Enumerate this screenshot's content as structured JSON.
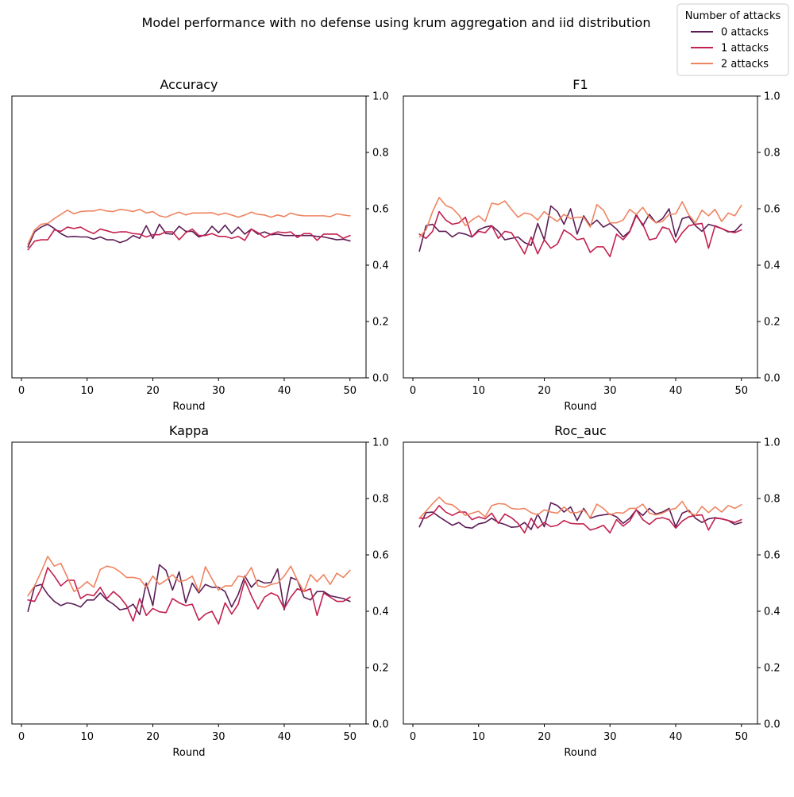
{
  "figure": {
    "title": "Model performance with no defense using krum aggregation and iid distribution",
    "legend_title": "Number of attacks",
    "legend_placement": "top-right (figure)"
  },
  "colors": {
    "s0": "#5c1d56",
    "s1": "#c3204f",
    "s2": "#ef8460"
  },
  "chart_data": [
    {
      "type": "line",
      "title": "Accuracy",
      "xlabel": "Round",
      "ylabel": "",
      "xlim": [
        -1.45,
        52.45
      ],
      "ylim": [
        0,
        1
      ],
      "xticks": [
        0,
        10,
        20,
        30,
        40,
        50
      ],
      "yticks": [
        0.0,
        0.2,
        0.4,
        0.6,
        0.8,
        1.0
      ],
      "ytick_labels": [
        "0.0",
        "0.2",
        "0.4",
        "0.6",
        "0.8",
        "1.0"
      ],
      "y_axis_side": "right",
      "grid": false,
      "x": [
        1,
        2,
        3,
        4,
        5,
        6,
        7,
        8,
        9,
        10,
        11,
        12,
        13,
        14,
        15,
        16,
        17,
        18,
        19,
        20,
        21,
        22,
        23,
        24,
        25,
        26,
        27,
        28,
        29,
        30,
        31,
        32,
        33,
        34,
        35,
        36,
        37,
        38,
        39,
        40,
        41,
        42,
        43,
        44,
        45,
        46,
        47,
        48,
        49,
        50
      ],
      "series": [
        {
          "name": "0 attacks",
          "color_key": "s0",
          "values": [
            0.465,
            0.518,
            0.535,
            0.545,
            0.53,
            0.512,
            0.5,
            0.502,
            0.5,
            0.5,
            0.492,
            0.5,
            0.49,
            0.49,
            0.48,
            0.488,
            0.505,
            0.495,
            0.54,
            0.495,
            0.545,
            0.512,
            0.51,
            0.538,
            0.52,
            0.52,
            0.5,
            0.508,
            0.538,
            0.515,
            0.542,
            0.512,
            0.535,
            0.51,
            0.528,
            0.51,
            0.518,
            0.508,
            0.51,
            0.505,
            0.505,
            0.505,
            0.505,
            0.505,
            0.502,
            0.5,
            0.495,
            0.49,
            0.492,
            0.486
          ]
        },
        {
          "name": "1 attacks",
          "color_key": "s1",
          "values": [
            0.455,
            0.485,
            0.49,
            0.49,
            0.525,
            0.52,
            0.535,
            0.53,
            0.535,
            0.522,
            0.512,
            0.528,
            0.522,
            0.515,
            0.518,
            0.518,
            0.512,
            0.51,
            0.5,
            0.508,
            0.508,
            0.518,
            0.518,
            0.49,
            0.515,
            0.528,
            0.505,
            0.505,
            0.512,
            0.502,
            0.502,
            0.495,
            0.502,
            0.488,
            0.528,
            0.515,
            0.498,
            0.51,
            0.518,
            0.515,
            0.518,
            0.498,
            0.512,
            0.512,
            0.488,
            0.51,
            0.51,
            0.51,
            0.495,
            0.505
          ]
        },
        {
          "name": "2 attacks",
          "color_key": "s2",
          "values": [
            0.475,
            0.525,
            0.545,
            0.548,
            0.565,
            0.58,
            0.595,
            0.582,
            0.59,
            0.592,
            0.592,
            0.598,
            0.592,
            0.59,
            0.598,
            0.595,
            0.59,
            0.598,
            0.585,
            0.59,
            0.575,
            0.57,
            0.58,
            0.588,
            0.578,
            0.585,
            0.585,
            0.585,
            0.586,
            0.578,
            0.585,
            0.578,
            0.57,
            0.578,
            0.588,
            0.58,
            0.578,
            0.57,
            0.578,
            0.572,
            0.585,
            0.578,
            0.575,
            0.575,
            0.575,
            0.575,
            0.572,
            0.582,
            0.578,
            0.575
          ]
        }
      ]
    },
    {
      "type": "line",
      "title": "F1",
      "xlabel": "Round",
      "ylabel": "",
      "xlim": [
        -1.45,
        52.45
      ],
      "ylim": [
        0,
        1
      ],
      "xticks": [
        0,
        10,
        20,
        30,
        40,
        50
      ],
      "yticks": [
        0.0,
        0.2,
        0.4,
        0.6,
        0.8,
        1.0
      ],
      "ytick_labels": [
        "0.0",
        "0.2",
        "0.4",
        "0.6",
        "0.8",
        "1.0"
      ],
      "y_axis_side": "right",
      "grid": false,
      "x": [
        1,
        2,
        3,
        4,
        5,
        6,
        7,
        8,
        9,
        10,
        11,
        12,
        13,
        14,
        15,
        16,
        17,
        18,
        19,
        20,
        21,
        22,
        23,
        24,
        25,
        26,
        27,
        28,
        29,
        30,
        31,
        32,
        33,
        34,
        35,
        36,
        37,
        38,
        39,
        40,
        41,
        42,
        43,
        44,
        45,
        46,
        47,
        48,
        49,
        50
      ],
      "series": [
        {
          "name": "0 attacks",
          "color_key": "s0",
          "values": [
            0.45,
            0.54,
            0.545,
            0.52,
            0.52,
            0.5,
            0.515,
            0.51,
            0.5,
            0.525,
            0.535,
            0.54,
            0.52,
            0.49,
            0.495,
            0.5,
            0.48,
            0.47,
            0.548,
            0.49,
            0.61,
            0.59,
            0.545,
            0.6,
            0.51,
            0.575,
            0.54,
            0.56,
            0.535,
            0.548,
            0.528,
            0.5,
            0.52,
            0.58,
            0.54,
            0.58,
            0.55,
            0.565,
            0.6,
            0.5,
            0.565,
            0.572,
            0.54,
            0.52,
            0.545,
            0.538,
            0.53,
            0.518,
            0.52,
            0.545
          ]
        },
        {
          "name": "1 attacks",
          "color_key": "s1",
          "values": [
            0.51,
            0.495,
            0.52,
            0.59,
            0.56,
            0.545,
            0.55,
            0.57,
            0.5,
            0.52,
            0.515,
            0.54,
            0.495,
            0.52,
            0.515,
            0.48,
            0.44,
            0.5,
            0.44,
            0.49,
            0.46,
            0.475,
            0.525,
            0.51,
            0.49,
            0.495,
            0.445,
            0.465,
            0.465,
            0.43,
            0.51,
            0.49,
            0.518,
            0.575,
            0.545,
            0.49,
            0.495,
            0.535,
            0.528,
            0.48,
            0.515,
            0.54,
            0.545,
            0.548,
            0.46,
            0.54,
            0.53,
            0.52,
            0.515,
            0.525
          ]
        },
        {
          "name": "2 attacks",
          "color_key": "s2",
          "values": [
            0.5,
            0.525,
            0.59,
            0.64,
            0.612,
            0.602,
            0.578,
            0.54,
            0.56,
            0.575,
            0.555,
            0.62,
            0.615,
            0.628,
            0.598,
            0.57,
            0.585,
            0.58,
            0.56,
            0.59,
            0.57,
            0.555,
            0.58,
            0.565,
            0.57,
            0.57,
            0.535,
            0.615,
            0.595,
            0.55,
            0.55,
            0.56,
            0.598,
            0.58,
            0.605,
            0.57,
            0.55,
            0.555,
            0.58,
            0.582,
            0.625,
            0.578,
            0.55,
            0.595,
            0.575,
            0.598,
            0.555,
            0.585,
            0.575,
            0.612
          ]
        }
      ]
    },
    {
      "type": "line",
      "title": "Kappa",
      "xlabel": "Round",
      "ylabel": "",
      "xlim": [
        -1.45,
        52.45
      ],
      "ylim": [
        0,
        1
      ],
      "xticks": [
        0,
        10,
        20,
        30,
        40,
        50
      ],
      "yticks": [
        0.0,
        0.2,
        0.4,
        0.6,
        0.8,
        1.0
      ],
      "ytick_labels": [
        "0.0",
        "0.2",
        "0.4",
        "0.6",
        "0.8",
        "1.0"
      ],
      "y_axis_side": "right",
      "grid": false,
      "x": [
        1,
        2,
        3,
        4,
        5,
        6,
        7,
        8,
        9,
        10,
        11,
        12,
        13,
        14,
        15,
        16,
        17,
        18,
        19,
        20,
        21,
        22,
        23,
        24,
        25,
        26,
        27,
        28,
        29,
        30,
        31,
        32,
        33,
        34,
        35,
        36,
        37,
        38,
        39,
        40,
        41,
        42,
        43,
        44,
        45,
        46,
        47,
        48,
        49,
        50
      ],
      "series": [
        {
          "name": "0 attacks",
          "color_key": "s0",
          "values": [
            0.4,
            0.488,
            0.495,
            0.46,
            0.435,
            0.42,
            0.43,
            0.425,
            0.415,
            0.44,
            0.44,
            0.465,
            0.44,
            0.425,
            0.405,
            0.41,
            0.425,
            0.388,
            0.5,
            0.42,
            0.565,
            0.545,
            0.475,
            0.54,
            0.43,
            0.5,
            0.465,
            0.495,
            0.485,
            0.485,
            0.47,
            0.415,
            0.46,
            0.525,
            0.485,
            0.51,
            0.5,
            0.502,
            0.55,
            0.405,
            0.52,
            0.51,
            0.45,
            0.44,
            0.47,
            0.47,
            0.455,
            0.45,
            0.445,
            0.435
          ]
        },
        {
          "name": "1 attacks",
          "color_key": "s1",
          "values": [
            0.44,
            0.435,
            0.48,
            0.555,
            0.525,
            0.49,
            0.51,
            0.51,
            0.445,
            0.46,
            0.455,
            0.485,
            0.445,
            0.47,
            0.45,
            0.42,
            0.365,
            0.445,
            0.385,
            0.41,
            0.398,
            0.395,
            0.445,
            0.43,
            0.42,
            0.425,
            0.368,
            0.39,
            0.4,
            0.355,
            0.43,
            0.39,
            0.425,
            0.51,
            0.455,
            0.408,
            0.45,
            0.465,
            0.455,
            0.41,
            0.45,
            0.48,
            0.47,
            0.48,
            0.385,
            0.465,
            0.45,
            0.435,
            0.435,
            0.45
          ]
        },
        {
          "name": "2 attacks",
          "color_key": "s2",
          "values": [
            0.455,
            0.49,
            0.54,
            0.595,
            0.56,
            0.57,
            0.52,
            0.47,
            0.485,
            0.505,
            0.485,
            0.548,
            0.56,
            0.555,
            0.54,
            0.52,
            0.52,
            0.515,
            0.485,
            0.525,
            0.495,
            0.51,
            0.53,
            0.505,
            0.51,
            0.525,
            0.47,
            0.558,
            0.515,
            0.475,
            0.49,
            0.49,
            0.525,
            0.52,
            0.555,
            0.49,
            0.485,
            0.495,
            0.5,
            0.525,
            0.56,
            0.51,
            0.47,
            0.53,
            0.505,
            0.53,
            0.495,
            0.535,
            0.52,
            0.545
          ]
        }
      ]
    },
    {
      "type": "line",
      "title": "Roc_auc",
      "xlabel": "Round",
      "ylabel": "",
      "xlim": [
        -1.45,
        52.45
      ],
      "ylim": [
        0,
        1
      ],
      "xticks": [
        0,
        10,
        20,
        30,
        40,
        50
      ],
      "yticks": [
        0.0,
        0.2,
        0.4,
        0.6,
        0.8,
        1.0
      ],
      "ytick_labels": [
        "0.0",
        "0.2",
        "0.4",
        "0.6",
        "0.8",
        "1.0"
      ],
      "y_axis_side": "right",
      "grid": false,
      "x": [
        1,
        2,
        3,
        4,
        5,
        6,
        7,
        8,
        9,
        10,
        11,
        12,
        13,
        14,
        15,
        16,
        17,
        18,
        19,
        20,
        21,
        22,
        23,
        24,
        25,
        26,
        27,
        28,
        29,
        30,
        31,
        32,
        33,
        34,
        35,
        36,
        37,
        38,
        39,
        40,
        41,
        42,
        43,
        44,
        45,
        46,
        47,
        48,
        49,
        50
      ],
      "series": [
        {
          "name": "0 attacks",
          "color_key": "s0",
          "values": [
            0.7,
            0.75,
            0.752,
            0.735,
            0.72,
            0.705,
            0.715,
            0.698,
            0.695,
            0.71,
            0.715,
            0.73,
            0.715,
            0.708,
            0.698,
            0.7,
            0.715,
            0.69,
            0.745,
            0.7,
            0.785,
            0.775,
            0.752,
            0.77,
            0.722,
            0.765,
            0.73,
            0.738,
            0.742,
            0.745,
            0.735,
            0.712,
            0.73,
            0.76,
            0.74,
            0.765,
            0.745,
            0.752,
            0.765,
            0.7,
            0.748,
            0.758,
            0.73,
            0.715,
            0.728,
            0.732,
            0.728,
            0.722,
            0.708,
            0.715
          ]
        },
        {
          "name": "1 attacks",
          "color_key": "s1",
          "values": [
            0.73,
            0.73,
            0.745,
            0.775,
            0.752,
            0.74,
            0.752,
            0.752,
            0.725,
            0.735,
            0.728,
            0.748,
            0.712,
            0.745,
            0.732,
            0.712,
            0.678,
            0.73,
            0.695,
            0.715,
            0.7,
            0.705,
            0.722,
            0.712,
            0.71,
            0.71,
            0.688,
            0.695,
            0.705,
            0.678,
            0.725,
            0.702,
            0.72,
            0.76,
            0.725,
            0.708,
            0.728,
            0.732,
            0.725,
            0.695,
            0.72,
            0.735,
            0.74,
            0.742,
            0.688,
            0.73,
            0.728,
            0.722,
            0.715,
            0.725
          ]
        },
        {
          "name": "2 attacks",
          "color_key": "s2",
          "values": [
            0.73,
            0.755,
            0.782,
            0.805,
            0.782,
            0.778,
            0.76,
            0.74,
            0.748,
            0.755,
            0.735,
            0.775,
            0.782,
            0.78,
            0.765,
            0.762,
            0.765,
            0.75,
            0.742,
            0.76,
            0.752,
            0.748,
            0.77,
            0.75,
            0.75,
            0.76,
            0.732,
            0.78,
            0.765,
            0.742,
            0.75,
            0.748,
            0.765,
            0.765,
            0.78,
            0.748,
            0.742,
            0.748,
            0.76,
            0.765,
            0.79,
            0.752,
            0.74,
            0.772,
            0.75,
            0.77,
            0.752,
            0.775,
            0.765,
            0.778
          ]
        }
      ]
    }
  ]
}
